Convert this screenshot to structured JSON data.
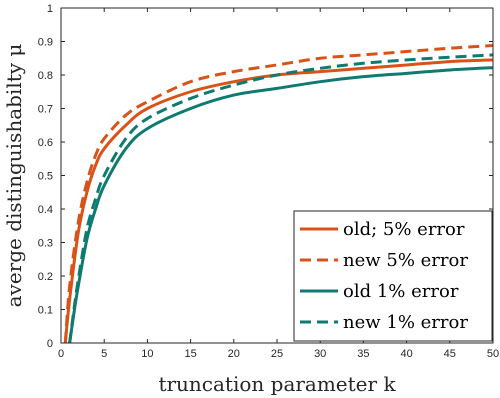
{
  "chart_data": {
    "type": "line",
    "xlabel": "truncation parameter k",
    "ylabel": "averge distinguishabilty μ",
    "xlim": [
      0,
      50
    ],
    "ylim": [
      0,
      1
    ],
    "xticks": [
      0,
      5,
      10,
      15,
      20,
      25,
      30,
      35,
      40,
      45,
      50
    ],
    "yticks": [
      0,
      0.1,
      0.2,
      0.3,
      0.4,
      0.5,
      0.6,
      0.7,
      0.8,
      0.9,
      1
    ],
    "grid": false,
    "legend_position": "bottom-right",
    "series": [
      {
        "name": "old; 5% error",
        "color": "#d95319",
        "style": "solid",
        "x": [
          0.5,
          1,
          2,
          3,
          4,
          5,
          7.5,
          10,
          15,
          20,
          25,
          30,
          35,
          40,
          45,
          50
        ],
        "y": [
          0.0,
          0.13,
          0.33,
          0.45,
          0.53,
          0.58,
          0.65,
          0.7,
          0.75,
          0.78,
          0.8,
          0.81,
          0.82,
          0.83,
          0.84,
          0.845
        ]
      },
      {
        "name": "new 5% error",
        "color": "#d95319",
        "style": "dashed",
        "x": [
          0.5,
          1,
          2,
          3,
          4,
          5,
          7.5,
          10,
          15,
          20,
          25,
          30,
          35,
          40,
          45,
          50
        ],
        "y": [
          0.0,
          0.17,
          0.36,
          0.48,
          0.56,
          0.61,
          0.68,
          0.72,
          0.78,
          0.81,
          0.83,
          0.85,
          0.86,
          0.87,
          0.88,
          0.888
        ]
      },
      {
        "name": "old 1% error",
        "color": "#0e7a70",
        "style": "solid",
        "x": [
          1,
          1.5,
          2,
          3,
          4,
          5,
          7.5,
          10,
          15,
          20,
          25,
          30,
          35,
          40,
          45,
          50
        ],
        "y": [
          0.0,
          0.09,
          0.17,
          0.31,
          0.4,
          0.47,
          0.58,
          0.64,
          0.7,
          0.74,
          0.76,
          0.78,
          0.795,
          0.805,
          0.815,
          0.822
        ]
      },
      {
        "name": "new 1% error",
        "color": "#0e7a70",
        "style": "dashed",
        "x": [
          1,
          1.5,
          2,
          3,
          4,
          5,
          7.5,
          10,
          15,
          20,
          25,
          30,
          35,
          40,
          45,
          50
        ],
        "y": [
          0.0,
          0.1,
          0.19,
          0.34,
          0.43,
          0.5,
          0.61,
          0.67,
          0.73,
          0.77,
          0.8,
          0.82,
          0.835,
          0.845,
          0.853,
          0.86
        ]
      }
    ]
  }
}
